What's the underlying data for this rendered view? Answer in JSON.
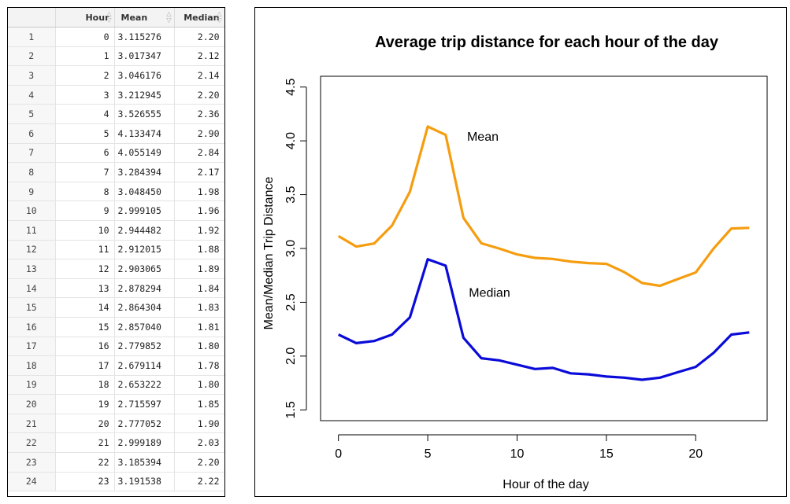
{
  "table": {
    "columns": [
      "",
      "Hour",
      "Mean",
      "Median"
    ],
    "rows": [
      [
        "1",
        "0",
        "3.115276",
        "2.20"
      ],
      [
        "2",
        "1",
        "3.017347",
        "2.12"
      ],
      [
        "3",
        "2",
        "3.046176",
        "2.14"
      ],
      [
        "4",
        "3",
        "3.212945",
        "2.20"
      ],
      [
        "5",
        "4",
        "3.526555",
        "2.36"
      ],
      [
        "6",
        "5",
        "4.133474",
        "2.90"
      ],
      [
        "7",
        "6",
        "4.055149",
        "2.84"
      ],
      [
        "8",
        "7",
        "3.284394",
        "2.17"
      ],
      [
        "9",
        "8",
        "3.048450",
        "1.98"
      ],
      [
        "10",
        "9",
        "2.999105",
        "1.96"
      ],
      [
        "11",
        "10",
        "2.944482",
        "1.92"
      ],
      [
        "12",
        "11",
        "2.912015",
        "1.88"
      ],
      [
        "13",
        "12",
        "2.903065",
        "1.89"
      ],
      [
        "14",
        "13",
        "2.878294",
        "1.84"
      ],
      [
        "15",
        "14",
        "2.864304",
        "1.83"
      ],
      [
        "16",
        "15",
        "2.857040",
        "1.81"
      ],
      [
        "17",
        "16",
        "2.779852",
        "1.80"
      ],
      [
        "18",
        "17",
        "2.679114",
        "1.78"
      ],
      [
        "19",
        "18",
        "2.653222",
        "1.80"
      ],
      [
        "20",
        "19",
        "2.715597",
        "1.85"
      ],
      [
        "21",
        "20",
        "2.777052",
        "1.90"
      ],
      [
        "22",
        "21",
        "2.999189",
        "2.03"
      ],
      [
        "23",
        "22",
        "3.185394",
        "2.20"
      ],
      [
        "24",
        "23",
        "3.191538",
        "2.22"
      ]
    ]
  },
  "chart_data": {
    "type": "line",
    "title": "Average trip distance for each hour of the day",
    "xlabel": "Hour of the day",
    "ylabel": "Mean/Median Trip Distance",
    "x": [
      0,
      1,
      2,
      3,
      4,
      5,
      6,
      7,
      8,
      9,
      10,
      11,
      12,
      13,
      14,
      15,
      16,
      17,
      18,
      19,
      20,
      21,
      22,
      23
    ],
    "xlim": [
      -1,
      24
    ],
    "ylim": [
      1.4,
      4.6
    ],
    "xticks": [
      "0",
      "5",
      "10",
      "15",
      "20"
    ],
    "yticks": [
      "1.5",
      "2.0",
      "2.5",
      "3.0",
      "3.5",
      "4.0",
      "4.5"
    ],
    "grid": false,
    "series": [
      {
        "name": "Mean",
        "color": "#f59d0f",
        "values": [
          3.115276,
          3.017347,
          3.046176,
          3.212945,
          3.526555,
          4.133474,
          4.055149,
          3.284394,
          3.04845,
          2.999105,
          2.944482,
          2.912015,
          2.903065,
          2.878294,
          2.864304,
          2.85704,
          2.779852,
          2.679114,
          2.653222,
          2.715597,
          2.777052,
          2.999189,
          3.185394,
          3.191538
        ]
      },
      {
        "name": "Median",
        "color": "#0b0bd9",
        "values": [
          2.2,
          2.12,
          2.14,
          2.2,
          2.36,
          2.9,
          2.84,
          2.17,
          1.98,
          1.96,
          1.92,
          1.88,
          1.89,
          1.84,
          1.83,
          1.81,
          1.8,
          1.78,
          1.8,
          1.85,
          1.9,
          2.03,
          2.2,
          2.22
        ]
      }
    ],
    "annotations": [
      {
        "text": "Mean",
        "x": 7.2,
        "y": 4.0
      },
      {
        "text": "Median",
        "x": 7.3,
        "y": 2.55
      }
    ]
  }
}
